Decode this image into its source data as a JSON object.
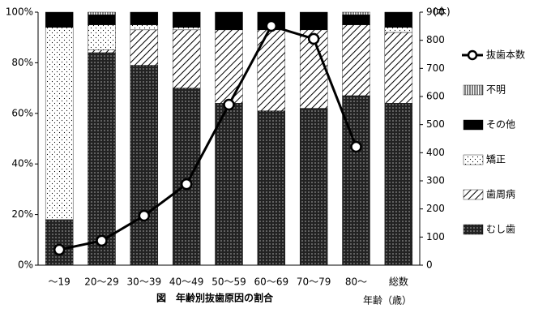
{
  "chart_data": {
    "type": "bar",
    "stacked": true,
    "title": "図　年齢別抜歯原因の割合",
    "x_label": "年齢（歳）",
    "y2_label": "(本)",
    "categories": [
      "～19",
      "20～29",
      "30～39",
      "40～49",
      "50～59",
      "60～69",
      "70～79",
      "80～",
      "総数"
    ],
    "ylim": [
      0,
      100
    ],
    "yticks": [
      {
        "value": 0,
        "label": "0%"
      },
      {
        "value": 20,
        "label": "20%"
      },
      {
        "value": 40,
        "label": "40%"
      },
      {
        "value": 60,
        "label": "60%"
      },
      {
        "value": 80,
        "label": "80%"
      },
      {
        "value": 100,
        "label": "100%"
      }
    ],
    "y2lim": [
      0,
      900
    ],
    "y2ticks": [
      0,
      100,
      200,
      300,
      400,
      500,
      600,
      700,
      800,
      900
    ],
    "legend": "right",
    "series": [
      {
        "name": "むし歯",
        "color": "#222222",
        "pattern": "dark-dots",
        "values": [
          18,
          84,
          79,
          70,
          64,
          61,
          62,
          67,
          64
        ]
      },
      {
        "name": "歯周病",
        "color": "#ffffff",
        "pattern": "hatch",
        "values": [
          0,
          1,
          14,
          23,
          29,
          32,
          31,
          28,
          28
        ]
      },
      {
        "name": "矯正",
        "color": "#ffffff",
        "pattern": "light-dots",
        "values": [
          76,
          10,
          2,
          1,
          0,
          0,
          0,
          0,
          2
        ]
      },
      {
        "name": "その他",
        "color": "#000000",
        "pattern": "solid",
        "values": [
          6,
          4,
          5,
          6,
          7,
          7,
          7,
          4,
          6
        ]
      },
      {
        "name": "不明",
        "color": "#ffffff",
        "pattern": "vlines",
        "values": [
          0,
          1,
          0,
          0,
          0,
          0,
          0,
          1,
          0
        ]
      },
      {
        "name": "抜歯本数",
        "type": "line",
        "axis": "y2",
        "color": "#000000",
        "values": [
          55,
          87,
          176,
          288,
          571,
          851,
          805,
          421,
          null
        ]
      }
    ]
  }
}
